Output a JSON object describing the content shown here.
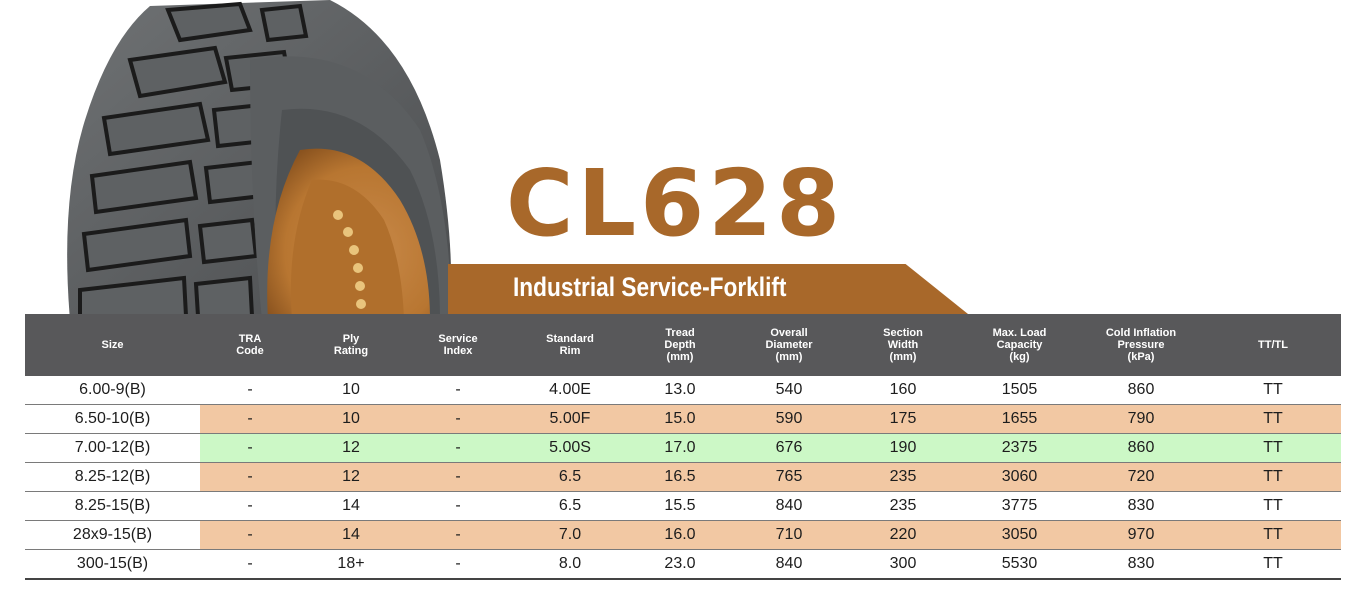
{
  "product": {
    "model": "CL628",
    "subtitle": "Industrial Service-Forklift"
  },
  "colors": {
    "brand_brown": "#a8682a",
    "header_gray": "#58585a",
    "row_tan": "#f2c8a3",
    "row_green": "#ccf8c6"
  },
  "table": {
    "headers": [
      "Size",
      "TRA\nCode",
      "Ply\nRating",
      "Service\nIndex",
      "Standard\nRim",
      "Tread\nDepth\n(mm)",
      "Overall\nDiameter\n(mm)",
      "Section\nWidth\n(mm)",
      "Max. Load\nCapacity\n(kg)",
      "Cold Inflation\nPressure\n(kPa)",
      "TT/TL"
    ],
    "rows": [
      {
        "style": "plain",
        "cells": [
          "6.00-9(B)",
          "-",
          "10",
          "-",
          "4.00E",
          "13.0",
          "540",
          "160",
          "1505",
          "860",
          "TT"
        ]
      },
      {
        "style": "tan",
        "cells": [
          "6.50-10(B)",
          "-",
          "10",
          "-",
          "5.00F",
          "15.0",
          "590",
          "175",
          "1655",
          "790",
          "TT"
        ]
      },
      {
        "style": "green",
        "cells": [
          "7.00-12(B)",
          "-",
          "12",
          "-",
          "5.00S",
          "17.0",
          "676",
          "190",
          "2375",
          "860",
          "TT"
        ]
      },
      {
        "style": "tan",
        "cells": [
          "8.25-12(B)",
          "-",
          "12",
          "-",
          "6.5",
          "16.5",
          "765",
          "235",
          "3060",
          "720",
          "TT"
        ]
      },
      {
        "style": "plain",
        "cells": [
          "8.25-15(B)",
          "-",
          "14",
          "-",
          "6.5",
          "15.5",
          "840",
          "235",
          "3775",
          "830",
          "TT"
        ]
      },
      {
        "style": "tan",
        "cells": [
          "28x9-15(B)",
          "-",
          "14",
          "-",
          "7.0",
          "16.0",
          "710",
          "220",
          "3050",
          "970",
          "TT"
        ]
      },
      {
        "style": "plain",
        "cells": [
          "300-15(B)",
          "-",
          "18+",
          "-",
          "8.0",
          "23.0",
          "840",
          "300",
          "5530",
          "830",
          "TT"
        ]
      }
    ]
  }
}
